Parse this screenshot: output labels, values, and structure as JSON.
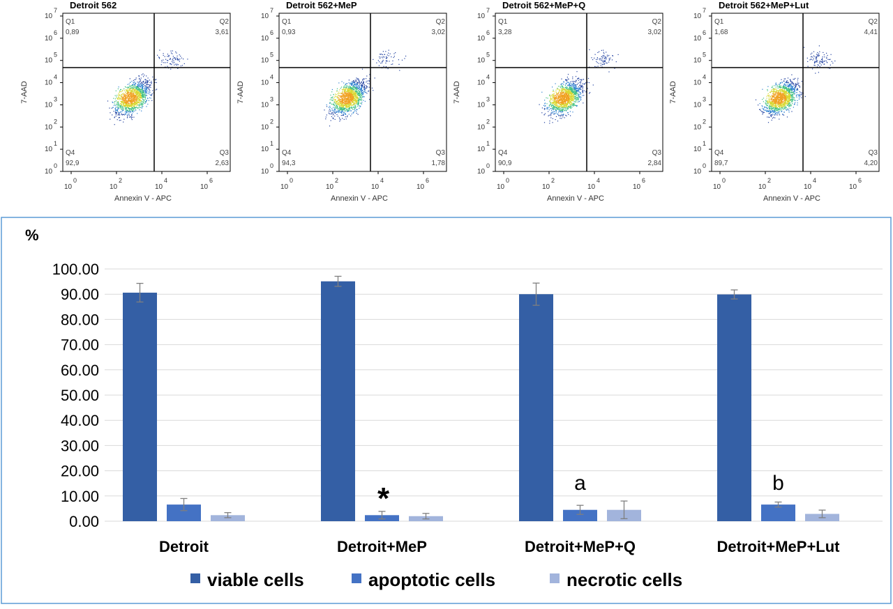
{
  "flow_plots": [
    {
      "title": "Detroit 562",
      "q1": "0,89",
      "q2": "3,61",
      "q3": "2,63",
      "q4": "92,9"
    },
    {
      "title": "Detroit 562+MeP",
      "q1": "0,93",
      "q2": "3,02",
      "q3": "1,78",
      "q4": "94,3"
    },
    {
      "title": "Detroit 562+MeP+Q",
      "q1": "3,28",
      "q2": "3,02",
      "q3": "2,84",
      "q4": "90,9"
    },
    {
      "title": "Detroit 562+MeP+Lut",
      "q1": "1,68",
      "q2": "4,41",
      "q3": "4,20",
      "q4": "89,7"
    }
  ],
  "flow_common": {
    "xlabel": "Annexin V - APC",
    "ylabel": "7-AAD",
    "q_labels": [
      "Q1",
      "Q2",
      "Q3",
      "Q4"
    ],
    "y_ticks": [
      "0",
      "1",
      "2",
      "3",
      "4",
      "5",
      "6",
      "7"
    ],
    "x_ticks": [
      "0",
      "2",
      "4",
      "6"
    ],
    "tick_base": "10"
  },
  "chart_data": {
    "type": "bar",
    "ylabel": "%",
    "ylim": [
      0,
      100
    ],
    "y_ticks": [
      "0.00",
      "10.00",
      "20.00",
      "30.00",
      "40.00",
      "50.00",
      "60.00",
      "70.00",
      "80.00",
      "90.00",
      "100.00"
    ],
    "grid": true,
    "legend_position": "bottom",
    "categories": [
      "Detroit",
      "Detroit+MeP",
      "Detroit+MeP+Q",
      "Detroit+MeP+Lut"
    ],
    "series": [
      {
        "name": "viable cells",
        "color": "#345fa5",
        "values": [
          90.6,
          95.1,
          90.0,
          89.9
        ],
        "errors": [
          3.7,
          2.0,
          4.4,
          1.8
        ]
      },
      {
        "name": "apoptotic cells",
        "color": "#4472c4",
        "values": [
          6.6,
          2.4,
          4.5,
          6.6
        ],
        "errors": [
          2.4,
          1.5,
          1.8,
          1.0
        ]
      },
      {
        "name": "necrotic cells",
        "color": "#a2b4dc",
        "values": [
          2.4,
          2.0,
          4.5,
          2.9
        ],
        "errors": [
          1.0,
          1.1,
          3.5,
          1.5
        ]
      }
    ],
    "annotations": [
      {
        "category": "Detroit+MeP",
        "series": "apoptotic cells",
        "text": "*"
      },
      {
        "category": "Detroit+MeP+Q",
        "series": "apoptotic cells",
        "text": "a"
      },
      {
        "category": "Detroit+MeP+Lut",
        "series": "apoptotic cells",
        "text": "b"
      }
    ]
  }
}
